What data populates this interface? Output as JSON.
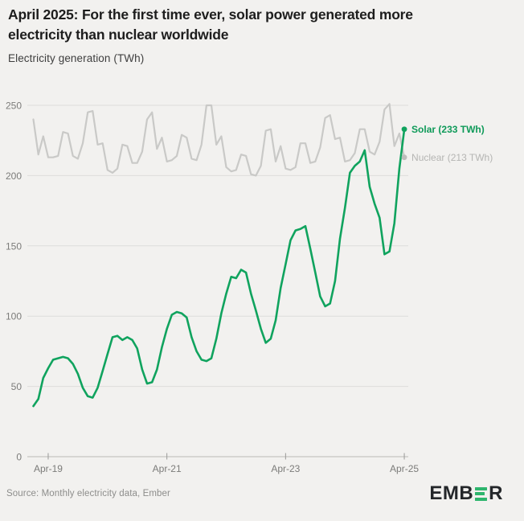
{
  "header": {
    "title_line1": "April 2025: For the first time ever, solar power generated more",
    "title_line2": "electricity than nuclear worldwide",
    "subtitle": "Electricity generation (TWh)"
  },
  "footer": {
    "source": "Source: Monthly electricity data, Ember",
    "logo_left": "EMB",
    "logo_right": "R",
    "logo_name": "EMBER"
  },
  "colors": {
    "background": "#f2f1ef",
    "solar": "#10a35e",
    "nuclear_line": "#c9c9c7",
    "nuclear_label": "#b5b5b3",
    "solar_label": "#0f9a59",
    "gridline": "#dddddb",
    "axis_text": "#7c7c7a",
    "title_text": "#1d1d1d",
    "logo_green": "#2eb56d"
  },
  "chart_data": {
    "type": "line",
    "title": "April 2025: For the first time ever, solar power generated more electricity than nuclear worldwide",
    "ylabel": "Electricity generation (TWh)",
    "xlabel": "",
    "ylim": [
      0,
      250
    ],
    "y_ticks": [
      0,
      50,
      100,
      150,
      200,
      250
    ],
    "grid": "horizontal",
    "legend_position": "right-end-of-line",
    "x_start_month": "Jan-2019",
    "x_end_month": "Apr-2025",
    "x_ticks": [
      {
        "label": "Apr-19",
        "month_index": 3
      },
      {
        "label": "Apr-21",
        "month_index": 27
      },
      {
        "label": "Apr-23",
        "month_index": 51
      },
      {
        "label": "Apr-25",
        "month_index": 75
      }
    ],
    "series": [
      {
        "name": "Nuclear",
        "color": "#c9c9c7",
        "end_value": 213,
        "end_label": "Nuclear (213 TWh)",
        "values": [
          240,
          215,
          228,
          213,
          213,
          214,
          231,
          230,
          214,
          212,
          223,
          245,
          246,
          222,
          223,
          204,
          202,
          205,
          222,
          221,
          209,
          209,
          217,
          240,
          245,
          219,
          227,
          210,
          211,
          214,
          229,
          227,
          212,
          211,
          222,
          250,
          250,
          222,
          228,
          206,
          203,
          204,
          215,
          214,
          201,
          200,
          207,
          232,
          233,
          210,
          221,
          205,
          204,
          206,
          223,
          223,
          209,
          210,
          220,
          241,
          243,
          226,
          227,
          210,
          211,
          216,
          233,
          233,
          217,
          215,
          224,
          247,
          251,
          221,
          230,
          213
        ]
      },
      {
        "name": "Solar",
        "color": "#10a35e",
        "end_value": 233,
        "end_label": "Solar (233 TWh)",
        "values": [
          36,
          41,
          56,
          63,
          69,
          70,
          71,
          70,
          66,
          59,
          49,
          43,
          42,
          49,
          61,
          73,
          85,
          86,
          83,
          85,
          83,
          77,
          62,
          52,
          53,
          62,
          78,
          91,
          101,
          103,
          102,
          99,
          85,
          75,
          69,
          68,
          70,
          84,
          102,
          116,
          128,
          127,
          133,
          131,
          116,
          104,
          91,
          81,
          84,
          97,
          120,
          137,
          154,
          161,
          162,
          164,
          148,
          131,
          114,
          107,
          109,
          125,
          155,
          177,
          202,
          207,
          210,
          218,
          192,
          180,
          170,
          144,
          146,
          166,
          205,
          233
        ]
      }
    ]
  }
}
